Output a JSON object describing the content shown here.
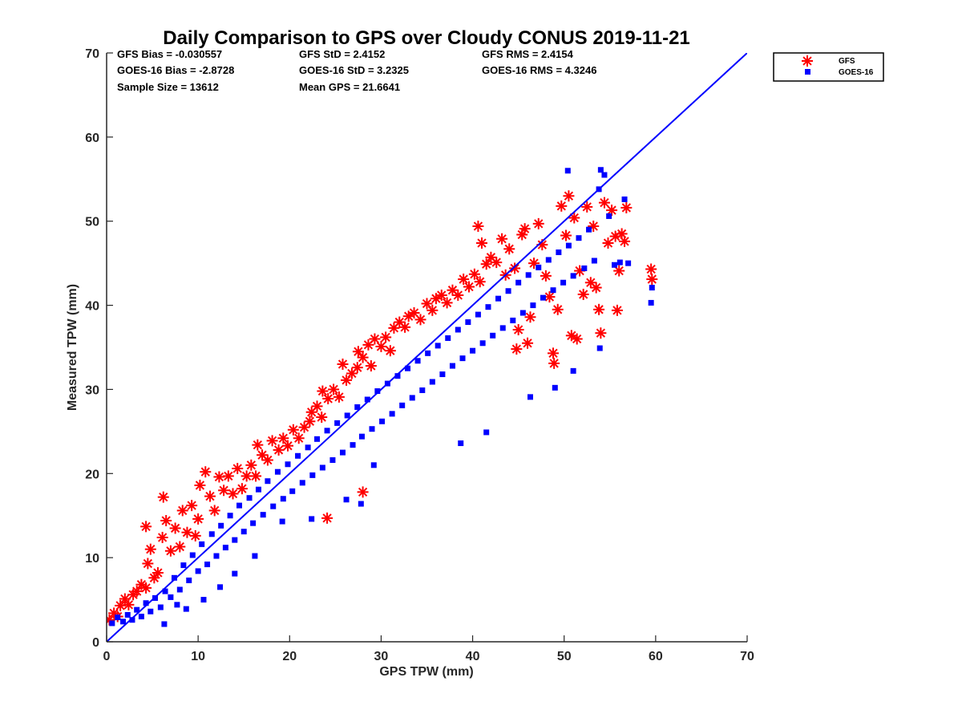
{
  "chart_data": {
    "type": "scatter",
    "title": "Daily Comparison to GPS over Cloudy CONUS 2019-11-21",
    "xlabel": "GPS TPW (mm)",
    "ylabel": "Measured TPW (mm)",
    "xlim": [
      0,
      70
    ],
    "ylim": [
      0,
      70
    ],
    "xticks": [
      0,
      10,
      20,
      30,
      40,
      50,
      60,
      70
    ],
    "yticks": [
      0,
      10,
      20,
      30,
      40,
      50,
      60,
      70
    ],
    "legend_position": "outside-top-right",
    "stats": {
      "gfs_bias": "GFS Bias = -0.030557",
      "goes_bias": "GOES-16 Bias = -2.8728",
      "sample_size": "Sample Size = 13612",
      "gfs_std": "GFS StD = 2.4152",
      "goes_std": "GOES-16 StD = 3.2325",
      "mean_gps": "Mean GPS = 21.6641",
      "gfs_rms": "GFS RMS = 2.4154",
      "goes_rms": "GOES-16 RMS = 4.3246"
    },
    "reference_line": {
      "name": "1:1 line",
      "x": [
        0,
        70
      ],
      "y": [
        0,
        70
      ],
      "color": "#0000ff"
    },
    "series": [
      {
        "name": "GFS",
        "marker": "asterisk",
        "color": "#ff0000",
        "points": [
          [
            0.3,
            2.6
          ],
          [
            0.8,
            3.4
          ],
          [
            1.2,
            3.0
          ],
          [
            1.5,
            4.3
          ],
          [
            2.0,
            5.1
          ],
          [
            2.4,
            4.4
          ],
          [
            2.9,
            5.6
          ],
          [
            3.3,
            6.0
          ],
          [
            3.8,
            6.8
          ],
          [
            4.3,
            6.4
          ],
          [
            4.3,
            13.7
          ],
          [
            4.5,
            9.3
          ],
          [
            4.8,
            11.0
          ],
          [
            5.2,
            7.6
          ],
          [
            5.6,
            8.2
          ],
          [
            6.1,
            12.4
          ],
          [
            6.2,
            17.2
          ],
          [
            6.5,
            14.4
          ],
          [
            7.0,
            10.8
          ],
          [
            7.5,
            13.5
          ],
          [
            8.0,
            11.3
          ],
          [
            8.3,
            15.6
          ],
          [
            8.8,
            13.0
          ],
          [
            9.3,
            16.2
          ],
          [
            9.7,
            12.6
          ],
          [
            10.0,
            14.6
          ],
          [
            10.2,
            18.6
          ],
          [
            10.8,
            20.2
          ],
          [
            11.3,
            17.3
          ],
          [
            11.8,
            15.6
          ],
          [
            12.3,
            19.6
          ],
          [
            12.8,
            18.0
          ],
          [
            13.3,
            19.7
          ],
          [
            13.8,
            17.6
          ],
          [
            14.3,
            20.6
          ],
          [
            14.8,
            18.2
          ],
          [
            15.3,
            19.7
          ],
          [
            15.8,
            21.0
          ],
          [
            16.3,
            19.7
          ],
          [
            16.5,
            23.4
          ],
          [
            17.0,
            22.2
          ],
          [
            17.6,
            21.6
          ],
          [
            18.1,
            23.9
          ],
          [
            18.8,
            22.8
          ],
          [
            19.3,
            24.2
          ],
          [
            19.8,
            23.3
          ],
          [
            20.4,
            25.2
          ],
          [
            21.0,
            24.2
          ],
          [
            21.6,
            25.5
          ],
          [
            22.2,
            26.2
          ],
          [
            22.4,
            27.3
          ],
          [
            23.0,
            28.0
          ],
          [
            23.5,
            26.7
          ],
          [
            23.6,
            29.8
          ],
          [
            24.2,
            28.9
          ],
          [
            24.8,
            30.0
          ],
          [
            24.1,
            14.7
          ],
          [
            25.4,
            29.1
          ],
          [
            25.8,
            33.0
          ],
          [
            26.2,
            31.1
          ],
          [
            26.8,
            31.9
          ],
          [
            27.4,
            32.6
          ],
          [
            27.5,
            34.5
          ],
          [
            28.0,
            33.8
          ],
          [
            28.6,
            35.3
          ],
          [
            28.9,
            32.8
          ],
          [
            28.0,
            17.8
          ],
          [
            29.3,
            36.0
          ],
          [
            30.0,
            35.1
          ],
          [
            30.5,
            36.2
          ],
          [
            31.0,
            34.6
          ],
          [
            31.4,
            37.3
          ],
          [
            32.0,
            38.0
          ],
          [
            32.6,
            37.4
          ],
          [
            33.0,
            38.7
          ],
          [
            33.6,
            39.1
          ],
          [
            34.3,
            38.3
          ],
          [
            35.0,
            40.2
          ],
          [
            35.6,
            39.4
          ],
          [
            36.0,
            40.8
          ],
          [
            36.6,
            41.2
          ],
          [
            37.2,
            40.3
          ],
          [
            37.8,
            41.8
          ],
          [
            38.4,
            41.2
          ],
          [
            39.0,
            43.1
          ],
          [
            39.6,
            42.2
          ],
          [
            40.2,
            43.7
          ],
          [
            40.6,
            49.4
          ],
          [
            40.8,
            42.8
          ],
          [
            41.0,
            47.4
          ],
          [
            41.5,
            44.9
          ],
          [
            42.0,
            45.7
          ],
          [
            42.6,
            45.1
          ],
          [
            43.2,
            47.9
          ],
          [
            43.6,
            43.6
          ],
          [
            44.0,
            46.7
          ],
          [
            44.6,
            44.4
          ],
          [
            44.8,
            34.8
          ],
          [
            45.0,
            37.1
          ],
          [
            45.4,
            48.4
          ],
          [
            45.7,
            49.1
          ],
          [
            46.0,
            35.5
          ],
          [
            46.3,
            38.6
          ],
          [
            46.7,
            45.0
          ],
          [
            47.2,
            49.7
          ],
          [
            47.6,
            47.2
          ],
          [
            48.0,
            43.5
          ],
          [
            48.4,
            41.0
          ],
          [
            48.8,
            34.3
          ],
          [
            48.9,
            33.1
          ],
          [
            49.3,
            39.5
          ],
          [
            49.7,
            51.8
          ],
          [
            50.2,
            48.3
          ],
          [
            50.5,
            53.0
          ],
          [
            50.8,
            36.4
          ],
          [
            51.1,
            50.4
          ],
          [
            51.4,
            36.0
          ],
          [
            51.7,
            44.1
          ],
          [
            52.1,
            41.3
          ],
          [
            52.5,
            51.7
          ],
          [
            52.9,
            42.7
          ],
          [
            53.2,
            49.4
          ],
          [
            53.5,
            42.1
          ],
          [
            53.8,
            39.5
          ],
          [
            54.0,
            36.7
          ],
          [
            54.4,
            52.2
          ],
          [
            54.8,
            47.4
          ],
          [
            55.2,
            51.3
          ],
          [
            55.6,
            48.2
          ],
          [
            55.8,
            39.4
          ],
          [
            56.0,
            44.1
          ],
          [
            56.3,
            48.5
          ],
          [
            56.6,
            47.6
          ],
          [
            56.8,
            51.6
          ],
          [
            59.5,
            44.3
          ],
          [
            59.6,
            43.1
          ]
        ]
      },
      {
        "name": "GOES-16",
        "marker": "square",
        "color": "#0000ff",
        "points": [
          [
            0.6,
            2.2
          ],
          [
            1.2,
            2.9
          ],
          [
            1.8,
            2.4
          ],
          [
            2.3,
            3.2
          ],
          [
            2.8,
            2.6
          ],
          [
            3.3,
            3.8
          ],
          [
            3.8,
            3.0
          ],
          [
            4.3,
            4.6
          ],
          [
            4.8,
            3.6
          ],
          [
            5.3,
            5.2
          ],
          [
            5.9,
            4.1
          ],
          [
            6.3,
            2.1
          ],
          [
            6.4,
            6.0
          ],
          [
            7.0,
            5.3
          ],
          [
            7.4,
            7.6
          ],
          [
            8.0,
            6.2
          ],
          [
            8.4,
            9.1
          ],
          [
            9.0,
            7.3
          ],
          [
            9.4,
            10.3
          ],
          [
            10.0,
            8.4
          ],
          [
            10.4,
            11.6
          ],
          [
            11.0,
            9.2
          ],
          [
            11.5,
            12.8
          ],
          [
            12.0,
            10.2
          ],
          [
            12.5,
            13.8
          ],
          [
            13.0,
            11.2
          ],
          [
            13.5,
            15.0
          ],
          [
            14.0,
            12.1
          ],
          [
            14.5,
            16.2
          ],
          [
            15.0,
            13.1
          ],
          [
            15.6,
            17.1
          ],
          [
            16.0,
            14.1
          ],
          [
            16.6,
            18.1
          ],
          [
            17.1,
            15.1
          ],
          [
            17.6,
            19.1
          ],
          [
            18.2,
            16.1
          ],
          [
            18.7,
            20.2
          ],
          [
            19.3,
            17.0
          ],
          [
            19.8,
            21.1
          ],
          [
            20.3,
            17.9
          ],
          [
            20.9,
            22.1
          ],
          [
            21.4,
            18.9
          ],
          [
            22.0,
            23.1
          ],
          [
            22.5,
            19.8
          ],
          [
            23.0,
            24.1
          ],
          [
            23.6,
            20.7
          ],
          [
            24.1,
            25.1
          ],
          [
            24.7,
            21.6
          ],
          [
            25.2,
            26.0
          ],
          [
            25.8,
            22.5
          ],
          [
            26.3,
            26.9
          ],
          [
            26.9,
            23.4
          ],
          [
            27.4,
            27.9
          ],
          [
            27.9,
            24.4
          ],
          [
            28.5,
            28.8
          ],
          [
            29.0,
            25.3
          ],
          [
            29.6,
            29.8
          ],
          [
            30.1,
            26.2
          ],
          [
            30.7,
            30.7
          ],
          [
            31.2,
            27.1
          ],
          [
            31.8,
            31.6
          ],
          [
            32.3,
            28.1
          ],
          [
            32.9,
            32.5
          ],
          [
            33.4,
            29.0
          ],
          [
            34.0,
            33.4
          ],
          [
            34.5,
            29.9
          ],
          [
            35.1,
            34.3
          ],
          [
            35.6,
            30.9
          ],
          [
            36.2,
            35.2
          ],
          [
            36.7,
            31.8
          ],
          [
            37.3,
            36.1
          ],
          [
            37.8,
            32.8
          ],
          [
            38.4,
            37.1
          ],
          [
            38.9,
            33.7
          ],
          [
            39.5,
            38.0
          ],
          [
            40.0,
            34.6
          ],
          [
            40.6,
            38.9
          ],
          [
            41.1,
            35.5
          ],
          [
            41.7,
            39.8
          ],
          [
            42.2,
            36.4
          ],
          [
            42.8,
            40.8
          ],
          [
            43.3,
            37.3
          ],
          [
            43.9,
            41.7
          ],
          [
            44.4,
            38.2
          ],
          [
            45.0,
            42.7
          ],
          [
            45.5,
            39.1
          ],
          [
            46.1,
            43.6
          ],
          [
            46.6,
            40.0
          ],
          [
            47.2,
            44.5
          ],
          [
            47.7,
            40.9
          ],
          [
            48.3,
            45.4
          ],
          [
            48.8,
            41.8
          ],
          [
            49.4,
            46.3
          ],
          [
            49.9,
            42.7
          ],
          [
            50.4,
            56.0
          ],
          [
            50.5,
            47.1
          ],
          [
            51.0,
            43.5
          ],
          [
            51.6,
            48.0
          ],
          [
            52.2,
            44.4
          ],
          [
            52.7,
            49.0
          ],
          [
            53.3,
            45.3
          ],
          [
            53.8,
            53.8
          ],
          [
            54.0,
            56.1
          ],
          [
            54.4,
            55.5
          ],
          [
            54.9,
            50.6
          ],
          [
            55.5,
            44.8
          ],
          [
            56.1,
            45.1
          ],
          [
            56.6,
            52.6
          ],
          [
            57.0,
            45.0
          ],
          [
            59.5,
            40.3
          ],
          [
            59.6,
            42.1
          ],
          [
            49.0,
            30.2
          ],
          [
            46.3,
            29.1
          ],
          [
            51.0,
            32.2
          ],
          [
            53.9,
            34.9
          ],
          [
            41.5,
            24.9
          ],
          [
            38.7,
            23.6
          ],
          [
            29.2,
            21.0
          ],
          [
            27.8,
            16.4
          ],
          [
            26.2,
            16.9
          ],
          [
            22.4,
            14.6
          ],
          [
            19.2,
            14.3
          ],
          [
            16.2,
            10.2
          ],
          [
            14.0,
            8.1
          ],
          [
            12.4,
            6.5
          ],
          [
            10.6,
            5.0
          ],
          [
            8.7,
            3.9
          ],
          [
            7.7,
            4.4
          ]
        ]
      }
    ]
  }
}
